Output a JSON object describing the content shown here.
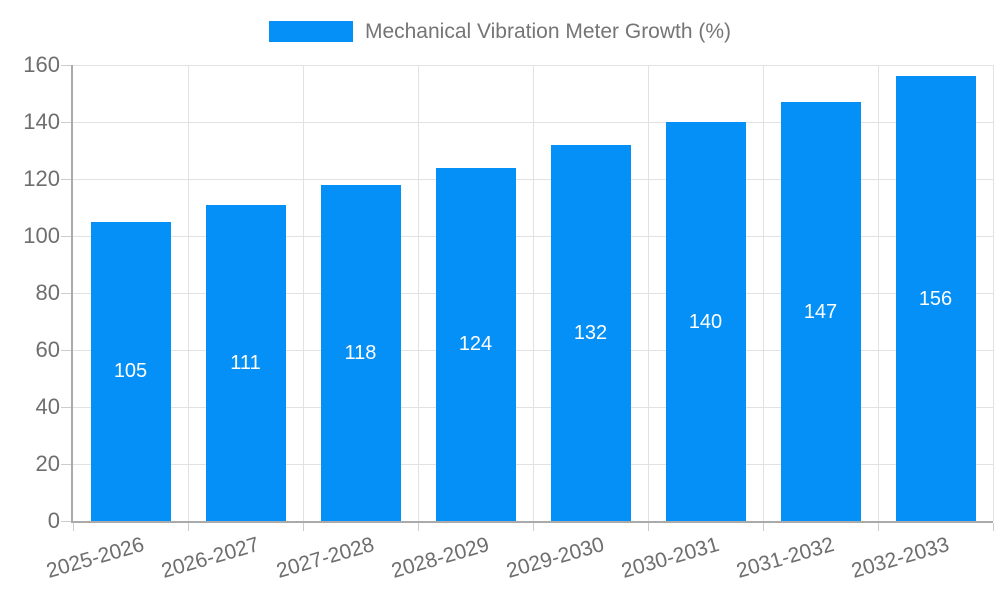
{
  "chart": {
    "legend": {
      "label": "Mechanical Vibration Meter Growth (%)"
    },
    "colors": {
      "bar": "#0590f8",
      "axis_line": "#aaaaaa",
      "gridline": "#e2e2e2",
      "tick": "#cccccc",
      "axis_text": "#6e6e6e",
      "legend_text": "#757575",
      "value_text": "#ffffff",
      "background": "#ffffff"
    }
  },
  "chart_data": {
    "type": "bar",
    "title": "Mechanical Vibration Meter Growth (%)",
    "categories": [
      "2025-2026",
      "2026-2027",
      "2027-2028",
      "2028-2029",
      "2029-2030",
      "2030-2031",
      "2031-2032",
      "2032-2033"
    ],
    "values": [
      105,
      111,
      118,
      124,
      132,
      140,
      147,
      156
    ],
    "xlabel": "",
    "ylabel": "",
    "ylim": [
      0,
      160
    ],
    "yticks": [
      0,
      20,
      40,
      60,
      80,
      100,
      120,
      140,
      160
    ],
    "grid": true,
    "legend_position": "top-center",
    "value_label_position": "inside-center",
    "x_label_rotation_deg": -16
  }
}
